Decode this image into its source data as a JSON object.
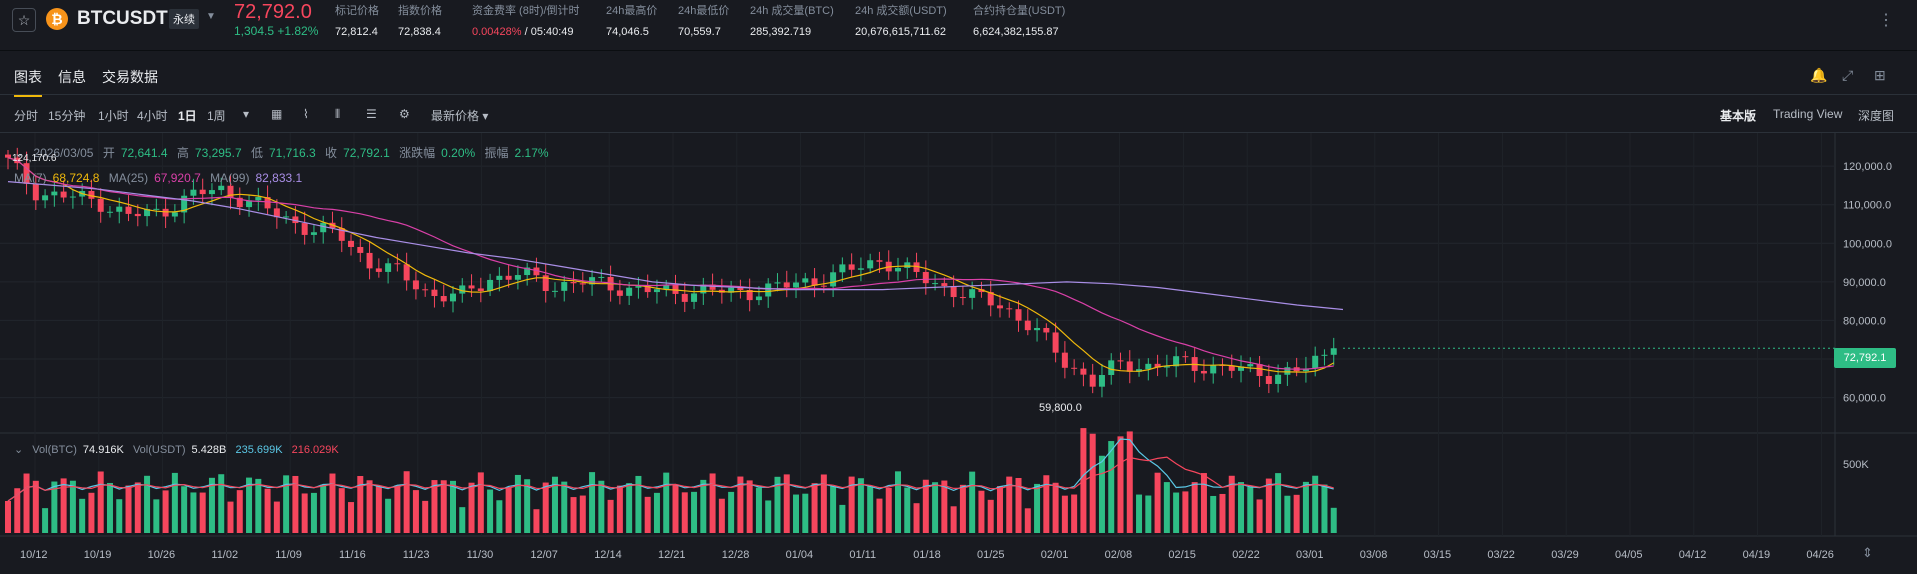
{
  "header": {
    "symbol": "BTCUSDT",
    "contract_type": "永续",
    "last_price": "72,792.0",
    "change": "1,304.5 +1.82%",
    "stats": [
      {
        "label": "标记价格",
        "value": "72,812.4"
      },
      {
        "label": "指数价格",
        "value": "72,838.4"
      },
      {
        "label": "资金费率 (8时)/倒计时",
        "value": "0.00428%",
        "value2": " / 05:40:49"
      },
      {
        "label": "24h最高价",
        "value": "74,046.5"
      },
      {
        "label": "24h最低价",
        "value": "70,559.7"
      },
      {
        "label": "24h 成交量(BTC)",
        "value": "285,392.719"
      },
      {
        "label": "24h 成交额(USDT)",
        "value": "20,676,615,711.62"
      },
      {
        "label": "合约持仓量(USDT)",
        "value": "6,624,382,155.87"
      }
    ]
  },
  "tabs": [
    {
      "label": "图表"
    },
    {
      "label": "信息"
    },
    {
      "label": "交易数据"
    }
  ],
  "toolbar": {
    "intervals": [
      "分时",
      "15分钟",
      "1小时",
      "4小时",
      "1日",
      "1周"
    ],
    "selected_interval": "1日",
    "price_type": "最新价格",
    "views": [
      "基本版",
      "Trading View",
      "深度图"
    ]
  },
  "legend": {
    "date": "2026/03/05",
    "open_label": "开",
    "open": "72,641.4",
    "high_label": "高",
    "high": "73,295.7",
    "low_label": "低",
    "low": "71,716.3",
    "close_label": "收",
    "close": "72,792.1",
    "change_label": "涨跌幅",
    "change": "0.20%",
    "amp_label": "振幅",
    "amp": "2.17%",
    "ma7_label": "MA(7)",
    "ma7": "68,724.8",
    "ma25_label": "MA(25)",
    "ma25": "67,920.7",
    "ma99_label": "MA(99)",
    "ma99": "82,833.1"
  },
  "volume": {
    "label_btc": "Vol(BTC)",
    "value_btc": "74.916K",
    "label_usdt": "Vol(USDT)",
    "value_usdt": "5.428B",
    "ma1": "235.699K",
    "ma2": "216.029K",
    "axis_label": "500K"
  },
  "price_tag": "72,792.1",
  "low_marker": "59,800.0",
  "high_marker": "124,170.6",
  "colors": {
    "up": "#2ebd85",
    "down": "#f6465d",
    "ma7": "#f0b90b",
    "ma25": "#d940a8",
    "ma99": "#a98ee6"
  },
  "chart_data": {
    "type": "candlestick",
    "y_ticks": [
      "120,000.0",
      "110,000.0",
      "100,000.0",
      "90,000.0",
      "80,000.0",
      "70,000.0",
      "60,000.0"
    ],
    "x_ticks": [
      "10/12",
      "10/19",
      "10/26",
      "11/02",
      "11/09",
      "11/16",
      "11/23",
      "11/30",
      "12/07",
      "12/14",
      "12/21",
      "12/28",
      "01/04",
      "01/11",
      "01/18",
      "01/25",
      "02/01",
      "02/08",
      "02/15",
      "02/22",
      "03/01",
      "03/08",
      "03/15",
      "03/22",
      "03/29",
      "04/05",
      "04/12",
      "04/19",
      "04/26"
    ],
    "ylim": [
      56000,
      126000
    ],
    "close_approx": [
      121000,
      113000,
      112000,
      111000,
      107000,
      108000,
      112000,
      114000,
      111000,
      107000,
      104000,
      102000,
      95000,
      92000,
      87000,
      86000,
      91000,
      92000,
      89000,
      90000,
      89000,
      88000,
      87000,
      88000,
      87000,
      88000,
      89000,
      91000,
      93000,
      96000,
      92000,
      89000,
      86000,
      84000,
      78000,
      70000,
      64000,
      69000,
      68000,
      69000,
      68000,
      67000,
      66000,
      67000,
      72792
    ],
    "ma99_approx": [
      116000,
      115000,
      114000,
      112500,
      111000,
      109000,
      106500,
      104000,
      101500,
      99500,
      97500,
      96000,
      94000,
      92000,
      90000,
      89000,
      88500,
      88000,
      88000,
      88000,
      88500,
      89000,
      89500,
      90000,
      89500,
      88500,
      87000,
      85500,
      84000,
      82833
    ]
  }
}
